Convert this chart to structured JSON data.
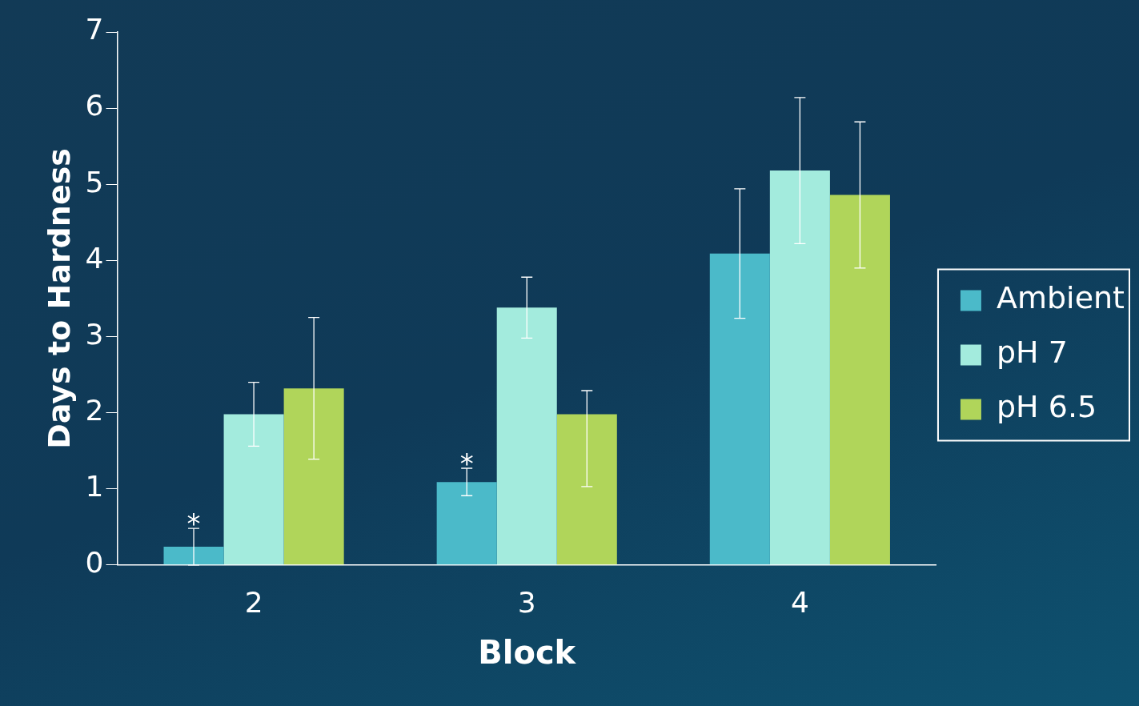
{
  "chart_data": {
    "type": "bar",
    "xlabel": "Block",
    "ylabel": "Days to Hardness",
    "categories": [
      "2",
      "3",
      "4"
    ],
    "series": [
      {
        "name": "Ambient",
        "color": "#4bbac9",
        "values": [
          0.24,
          1.09,
          4.09
        ],
        "errors": [
          0.24,
          0.18,
          0.85
        ]
      },
      {
        "name": "pH 7",
        "color": "#a3ebdd",
        "values": [
          1.98,
          3.38,
          5.18
        ],
        "errors": [
          0.42,
          0.4,
          0.96
        ]
      },
      {
        "name": "pH 6.5",
        "color": "#b0d55a",
        "values": [
          2.32,
          1.98,
          4.86
        ],
        "errors": [
          0.93,
          [
            1.03,
            2.29
          ],
          0.96
        ]
      }
    ],
    "annotations": [
      "*",
      "*"
    ],
    "ylim": [
      0,
      7
    ],
    "yticks": [
      0,
      1,
      2,
      3,
      4,
      5,
      6,
      7
    ],
    "grid": false,
    "legend": "right"
  }
}
